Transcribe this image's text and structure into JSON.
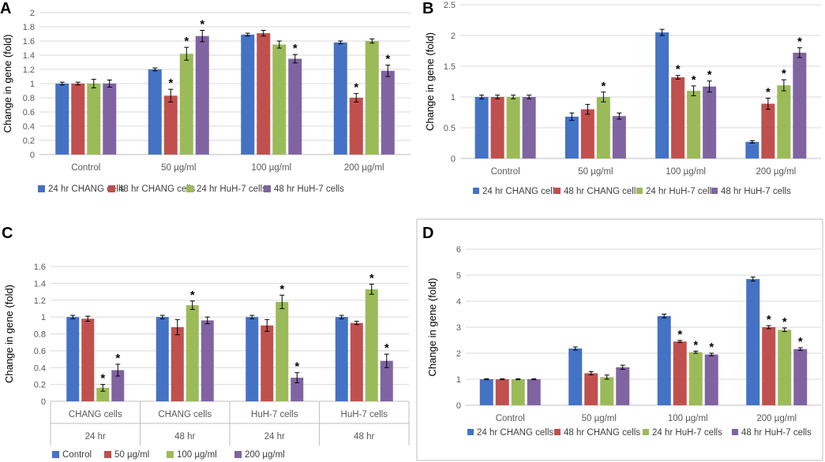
{
  "colors": {
    "series1": "#4472C4",
    "series2": "#C0504D",
    "series3": "#9BBB59",
    "series4": "#8064A2",
    "grid": "#D9D9D9",
    "axis": "#BFBFBF"
  },
  "chart_data": [
    {
      "panel": "A",
      "type": "bar",
      "ylabel": "Change in gene (fold)",
      "ylim": [
        0,
        2
      ],
      "yticks": [
        "0",
        "0.2",
        "0.4",
        "0.6",
        "0.8",
        "1",
        "1.2",
        "1.4",
        "1.6",
        "1.8",
        "2"
      ],
      "categories": [
        "Control",
        "50 µg/ml",
        "100 µg/ml",
        "200 µg/ml"
      ],
      "series": [
        {
          "name": "24 hr CHANG cells",
          "values": [
            1.0,
            1.2,
            1.69,
            1.58
          ],
          "errors": [
            0.02,
            0.02,
            0.02,
            0.02
          ],
          "sig": [
            false,
            false,
            false,
            false
          ]
        },
        {
          "name": "48 hr CHANG cells",
          "values": [
            1.0,
            0.83,
            1.71,
            0.8
          ],
          "errors": [
            0.02,
            0.09,
            0.04,
            0.06
          ],
          "sig": [
            false,
            true,
            false,
            true
          ]
        },
        {
          "name": "24 hr HuH-7 cells",
          "values": [
            1.0,
            1.42,
            1.55,
            1.6
          ],
          "errors": [
            0.06,
            0.09,
            0.05,
            0.03
          ],
          "sig": [
            false,
            true,
            false,
            false
          ]
        },
        {
          "name": "48 hr HuH-7 cells",
          "values": [
            1.0,
            1.67,
            1.35,
            1.18
          ],
          "errors": [
            0.05,
            0.08,
            0.06,
            0.08
          ],
          "sig": [
            false,
            true,
            true,
            true
          ]
        }
      ]
    },
    {
      "panel": "B",
      "type": "bar",
      "ylabel": "Change in gene (fold)",
      "ylim": [
        0,
        2.5
      ],
      "yticks": [
        "0",
        "0.5",
        "1",
        "1.5",
        "2",
        "2.5"
      ],
      "categories": [
        "Control",
        "50 µg/ml",
        "100 µg/ml",
        "200 µg/ml"
      ],
      "series": [
        {
          "name": "24 hr CHANG cells",
          "values": [
            1.0,
            0.68,
            2.05,
            0.27
          ],
          "errors": [
            0.03,
            0.06,
            0.05,
            0.02
          ],
          "sig": [
            false,
            false,
            false,
            false
          ]
        },
        {
          "name": "48 hr CHANG cells",
          "values": [
            1.0,
            0.8,
            1.32,
            0.89
          ],
          "errors": [
            0.03,
            0.08,
            0.03,
            0.09
          ],
          "sig": [
            false,
            false,
            true,
            true
          ]
        },
        {
          "name": "24 hr HuH-7 cells",
          "values": [
            1.0,
            1.0,
            1.1,
            1.19
          ],
          "errors": [
            0.03,
            0.08,
            0.08,
            0.09
          ],
          "sig": [
            false,
            true,
            true,
            true
          ]
        },
        {
          "name": "48 hr HuH-7 cells",
          "values": [
            1.0,
            0.69,
            1.17,
            1.72
          ],
          "errors": [
            0.03,
            0.05,
            0.09,
            0.08
          ],
          "sig": [
            false,
            false,
            true,
            true
          ]
        }
      ]
    },
    {
      "panel": "C",
      "type": "bar",
      "ylabel": "Change in gene (fold)",
      "ylim": [
        0,
        1.6
      ],
      "yticks": [
        "0",
        "0.2",
        "0.4",
        "0.6",
        "0.8",
        "1",
        "1.2",
        "1.4",
        "1.6"
      ],
      "categories": [
        "CHANG cells",
        "CHANG cells",
        "HuH-7 cells",
        "HuH-7 cells"
      ],
      "subcategories": [
        "24 hr",
        "48 hr",
        "24 hr",
        "48 hr"
      ],
      "series": [
        {
          "name": "Control",
          "values": [
            1.0,
            1.0,
            1.0,
            1.0
          ],
          "errors": [
            0.02,
            0.02,
            0.02,
            0.02
          ],
          "sig": [
            false,
            false,
            false,
            false
          ]
        },
        {
          "name": "50 µg/ml",
          "values": [
            0.98,
            0.88,
            0.9,
            0.93
          ],
          "errors": [
            0.03,
            0.09,
            0.07,
            0.02
          ],
          "sig": [
            false,
            false,
            false,
            false
          ]
        },
        {
          "name": "100 µg/ml",
          "values": [
            0.16,
            1.14,
            1.18,
            1.33
          ],
          "errors": [
            0.04,
            0.05,
            0.08,
            0.06
          ],
          "sig": [
            true,
            true,
            true,
            true
          ]
        },
        {
          "name": "200 µg/ml",
          "values": [
            0.37,
            0.96,
            0.28,
            0.48
          ],
          "errors": [
            0.07,
            0.04,
            0.06,
            0.08
          ],
          "sig": [
            true,
            false,
            true,
            true
          ]
        }
      ]
    },
    {
      "panel": "D",
      "type": "bar",
      "ylabel": "Change in gene (fold)",
      "ylim": [
        0,
        6
      ],
      "yticks": [
        "0",
        "1",
        "2",
        "3",
        "4",
        "5",
        "6"
      ],
      "categories": [
        "Control",
        "50 µg/ml",
        "100 µg/ml",
        "200 µg/ml"
      ],
      "series": [
        {
          "name": "24 hr CHANG cells",
          "values": [
            1.0,
            2.18,
            3.43,
            4.85
          ],
          "errors": [
            0.02,
            0.06,
            0.07,
            0.08
          ],
          "sig": [
            false,
            false,
            false,
            false
          ]
        },
        {
          "name": "48 hr CHANG cells",
          "values": [
            1.0,
            1.23,
            2.45,
            3.0
          ],
          "errors": [
            0.02,
            0.06,
            0.04,
            0.06
          ],
          "sig": [
            false,
            false,
            true,
            true
          ]
        },
        {
          "name": "24 hr HuH-7 cells",
          "values": [
            1.0,
            1.08,
            2.04,
            2.9
          ],
          "errors": [
            0.02,
            0.08,
            0.04,
            0.07
          ],
          "sig": [
            false,
            false,
            true,
            true
          ]
        },
        {
          "name": "48 hr HuH-7 cells",
          "values": [
            1.0,
            1.46,
            1.95,
            2.16
          ],
          "errors": [
            0.02,
            0.08,
            0.05,
            0.05
          ],
          "sig": [
            false,
            false,
            true,
            true
          ]
        }
      ]
    }
  ]
}
